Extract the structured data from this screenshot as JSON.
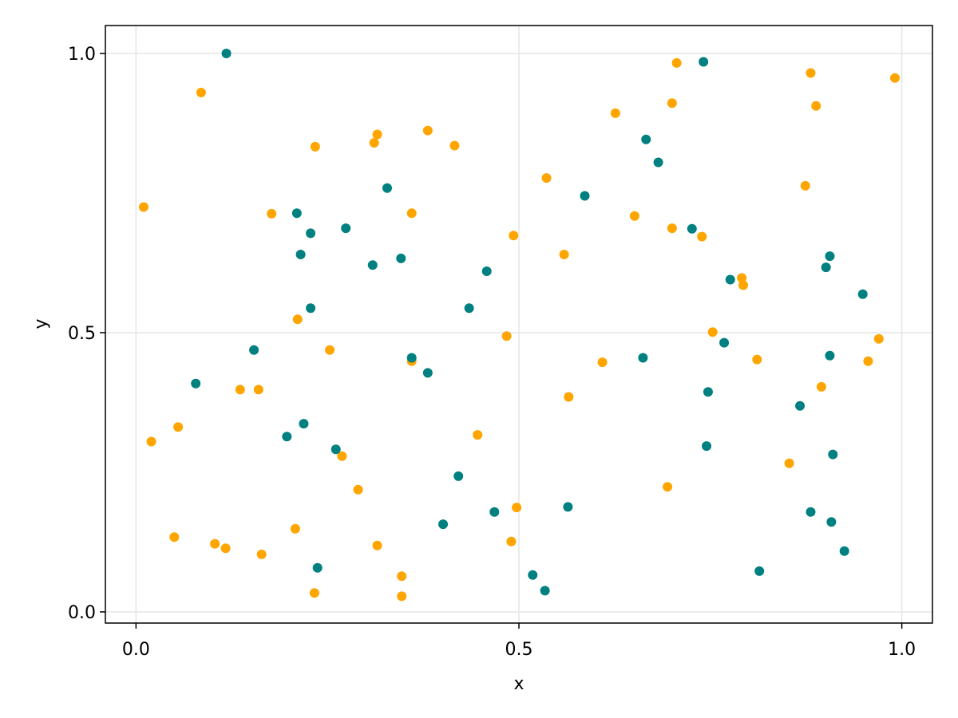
{
  "chart_data": {
    "type": "scatter",
    "title": "",
    "xlabel": "x",
    "ylabel": "y",
    "xlim": [
      -0.04,
      1.04
    ],
    "ylim": [
      -0.02,
      1.05
    ],
    "xticks": [
      0.0,
      0.5,
      1.0
    ],
    "yticks": [
      0.0,
      0.5,
      1.0
    ],
    "xtick_labels": [
      "0.0",
      "0.5",
      "1.0"
    ],
    "ytick_labels": [
      "0.0",
      "0.5",
      "1.0"
    ],
    "grid": true,
    "legend": "none",
    "series": [
      {
        "color": "#ffa500",
        "points": [
          [
            0.01,
            0.725
          ],
          [
            0.02,
            0.305
          ],
          [
            0.05,
            0.134
          ],
          [
            0.055,
            0.331
          ],
          [
            0.085,
            0.93
          ],
          [
            0.103,
            0.122
          ],
          [
            0.117,
            0.114
          ],
          [
            0.136,
            0.398
          ],
          [
            0.16,
            0.398
          ],
          [
            0.164,
            0.103
          ],
          [
            0.177,
            0.713
          ],
          [
            0.208,
            0.149
          ],
          [
            0.211,
            0.524
          ],
          [
            0.233,
            0.034
          ],
          [
            0.234,
            0.833
          ],
          [
            0.253,
            0.469
          ],
          [
            0.269,
            0.279
          ],
          [
            0.29,
            0.219
          ],
          [
            0.311,
            0.84
          ],
          [
            0.315,
            0.855
          ],
          [
            0.315,
            0.119
          ],
          [
            0.347,
            0.064
          ],
          [
            0.347,
            0.028
          ],
          [
            0.36,
            0.449
          ],
          [
            0.36,
            0.714
          ],
          [
            0.381,
            0.862
          ],
          [
            0.416,
            0.835
          ],
          [
            0.446,
            0.317
          ],
          [
            0.484,
            0.494
          ],
          [
            0.49,
            0.126
          ],
          [
            0.493,
            0.674
          ],
          [
            0.497,
            0.187
          ],
          [
            0.536,
            0.777
          ],
          [
            0.559,
            0.64
          ],
          [
            0.565,
            0.385
          ],
          [
            0.609,
            0.447
          ],
          [
            0.626,
            0.893
          ],
          [
            0.651,
            0.709
          ],
          [
            0.694,
            0.224
          ],
          [
            0.7,
            0.911
          ],
          [
            0.7,
            0.687
          ],
          [
            0.706,
            0.983
          ],
          [
            0.739,
            0.672
          ],
          [
            0.753,
            0.501
          ],
          [
            0.791,
            0.598
          ],
          [
            0.793,
            0.585
          ],
          [
            0.811,
            0.452
          ],
          [
            0.853,
            0.266
          ],
          [
            0.874,
            0.763
          ],
          [
            0.881,
            0.965
          ],
          [
            0.888,
            0.906
          ],
          [
            0.895,
            0.403
          ],
          [
            0.956,
            0.449
          ],
          [
            0.97,
            0.489
          ],
          [
            0.991,
            0.956
          ]
        ]
      },
      {
        "color": "#008080",
        "points": [
          [
            0.078,
            0.409
          ],
          [
            0.118,
            1.0
          ],
          [
            0.154,
            0.469
          ],
          [
            0.197,
            0.314
          ],
          [
            0.21,
            0.714
          ],
          [
            0.215,
            0.64
          ],
          [
            0.219,
            0.337
          ],
          [
            0.228,
            0.678
          ],
          [
            0.228,
            0.544
          ],
          [
            0.237,
            0.079
          ],
          [
            0.261,
            0.291
          ],
          [
            0.274,
            0.687
          ],
          [
            0.309,
            0.621
          ],
          [
            0.328,
            0.759
          ],
          [
            0.346,
            0.633
          ],
          [
            0.36,
            0.455
          ],
          [
            0.381,
            0.428
          ],
          [
            0.401,
            0.157
          ],
          [
            0.421,
            0.243
          ],
          [
            0.435,
            0.544
          ],
          [
            0.458,
            0.61
          ],
          [
            0.468,
            0.179
          ],
          [
            0.518,
            0.066
          ],
          [
            0.534,
            0.038
          ],
          [
            0.564,
            0.188
          ],
          [
            0.586,
            0.745
          ],
          [
            0.662,
            0.455
          ],
          [
            0.666,
            0.846
          ],
          [
            0.682,
            0.805
          ],
          [
            0.726,
            0.686
          ],
          [
            0.741,
            0.985
          ],
          [
            0.745,
            0.297
          ],
          [
            0.747,
            0.394
          ],
          [
            0.768,
            0.482
          ],
          [
            0.776,
            0.595
          ],
          [
            0.814,
            0.073
          ],
          [
            0.867,
            0.369
          ],
          [
            0.881,
            0.179
          ],
          [
            0.901,
            0.617
          ],
          [
            0.906,
            0.637
          ],
          [
            0.906,
            0.459
          ],
          [
            0.908,
            0.161
          ],
          [
            0.91,
            0.282
          ],
          [
            0.925,
            0.109
          ],
          [
            0.949,
            0.569
          ]
        ]
      }
    ]
  }
}
